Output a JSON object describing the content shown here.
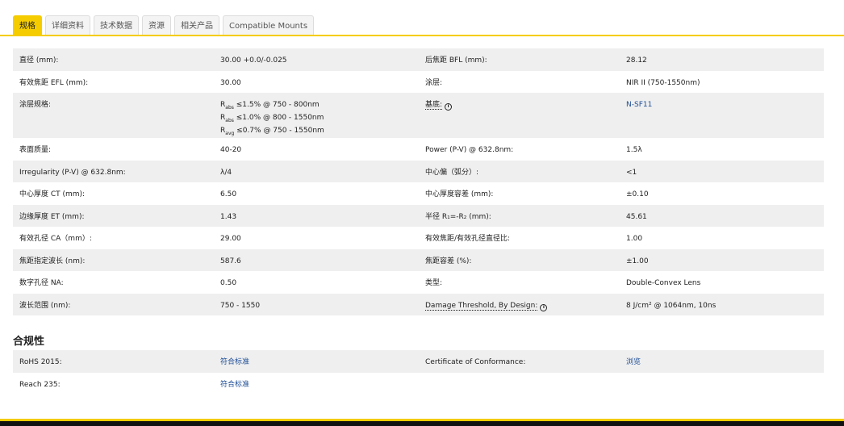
{
  "tabs": [
    {
      "label": "规格",
      "active": true
    },
    {
      "label": "详细资料"
    },
    {
      "label": "技术数据"
    },
    {
      "label": "资源"
    },
    {
      "label": "相关产品"
    },
    {
      "label": "Compatible Mounts"
    }
  ],
  "specs": [
    {
      "l1": "直径 (mm):",
      "v1": "30.00 +0.0/-0.025",
      "l2": "后焦距 BFL (mm):",
      "v2": "28.12"
    },
    {
      "l1": "有效焦距 EFL (mm):",
      "v1": "30.00",
      "l2": "涂层:",
      "v2": "NIR II (750-1550nm)"
    },
    {
      "l1": "涂层规格:",
      "v1_lines": [
        {
          "r": "R",
          "sub": "abs",
          "text": " ≤1.5% @ 750 - 800nm"
        },
        {
          "r": "R",
          "sub": "abs",
          "text": " ≤1.0% @ 800 - 1550nm"
        },
        {
          "r": "R",
          "sub": "avg",
          "text": " ≤0.7% @ 750 - 1550nm"
        }
      ],
      "l2": "基底:",
      "l2_info": true,
      "v2": "N-SF11",
      "v2_link": true,
      "tall": true
    },
    {
      "l1": "表面质量:",
      "v1": "40-20",
      "l2": "Power (P-V) @ 632.8nm:",
      "v2": "1.5λ"
    },
    {
      "l1": "Irregularity (P-V) @ 632.8nm:",
      "v1": "λ/4",
      "l2": "中心偏（弧分）:",
      "v2": "<1"
    },
    {
      "l1": "中心厚度 CT (mm):",
      "v1": "6.50",
      "l2": "中心厚度容差 (mm):",
      "v2": "±0.10"
    },
    {
      "l1": "边缘厚度 ET (mm):",
      "v1": "1.43",
      "l2": "半径 R₁=-R₂ (mm):",
      "v2": "45.61"
    },
    {
      "l1": "有效孔径 CA（mm）:",
      "v1": "29.00",
      "l2": "有效焦距/有效孔径直径比:",
      "v2": "1.00"
    },
    {
      "l1": "焦距指定波长 (nm):",
      "v1": "587.6",
      "l2": "焦距容差 (%):",
      "v2": "±1.00"
    },
    {
      "l1": "数字孔径 NA:",
      "v1": "0.50",
      "l2": "类型:",
      "v2": "Double-Convex Lens"
    },
    {
      "l1": "波长范围 (nm):",
      "v1": "750 - 1550",
      "l2": "Damage Threshold, By Design:",
      "l2_info": true,
      "v2": "8 J/cm² @ 1064nm, 10ns"
    }
  ],
  "compliance": {
    "title": "合规性",
    "rows": [
      {
        "l1": "RoHS 2015:",
        "v1": "符合标准",
        "v1_link": true,
        "l2": "Certificate of Conformance:",
        "v2": "浏览",
        "v2_link": true
      },
      {
        "l1": "Reach 235:",
        "v1": "符合标准",
        "v1_link": true
      }
    ]
  },
  "icons": {
    "info": "info-circle-icon"
  },
  "colors": {
    "accent": "#f5cc00",
    "link": "#1f4e96",
    "stripe": "#efefef"
  }
}
